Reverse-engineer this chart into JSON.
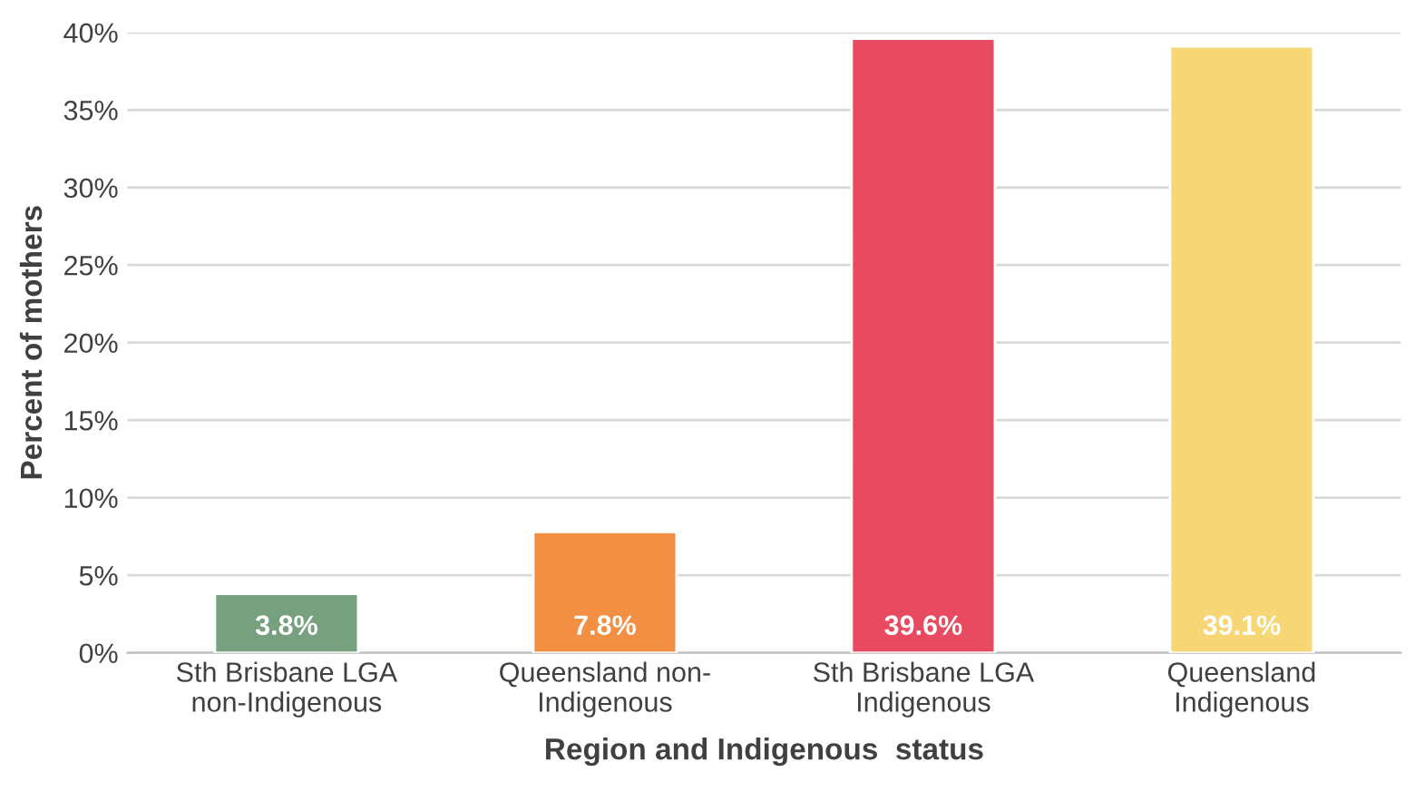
{
  "chart_data": {
    "type": "bar",
    "categories": [
      "Sth Brisbane LGA\nnon-Indigenous",
      "Queensland non-\nIndigenous",
      "Sth Brisbane LGA\nIndigenous",
      "Queensland\nIndigenous"
    ],
    "values": [
      3.8,
      7.8,
      39.6,
      39.1
    ],
    "colors": [
      "#77a17e",
      "#f28f43",
      "#e84b60",
      "#f6d675"
    ],
    "value_labels": [
      "3.8%",
      "7.8%",
      "39.6%",
      "39.1%"
    ],
    "xlabel": "Region and Indigenous  status",
    "ylabel": "Percent of mothers",
    "ylim": [
      0,
      40
    ],
    "yticks": [
      {
        "value": 0,
        "label": "0%"
      },
      {
        "value": 5,
        "label": "5%"
      },
      {
        "value": 10,
        "label": "10%"
      },
      {
        "value": 15,
        "label": "15%"
      },
      {
        "value": 20,
        "label": "20%"
      },
      {
        "value": 25,
        "label": "25%"
      },
      {
        "value": 30,
        "label": "30%"
      },
      {
        "value": 35,
        "label": "35%"
      },
      {
        "value": 40,
        "label": "40%"
      }
    ],
    "grid": "y"
  }
}
